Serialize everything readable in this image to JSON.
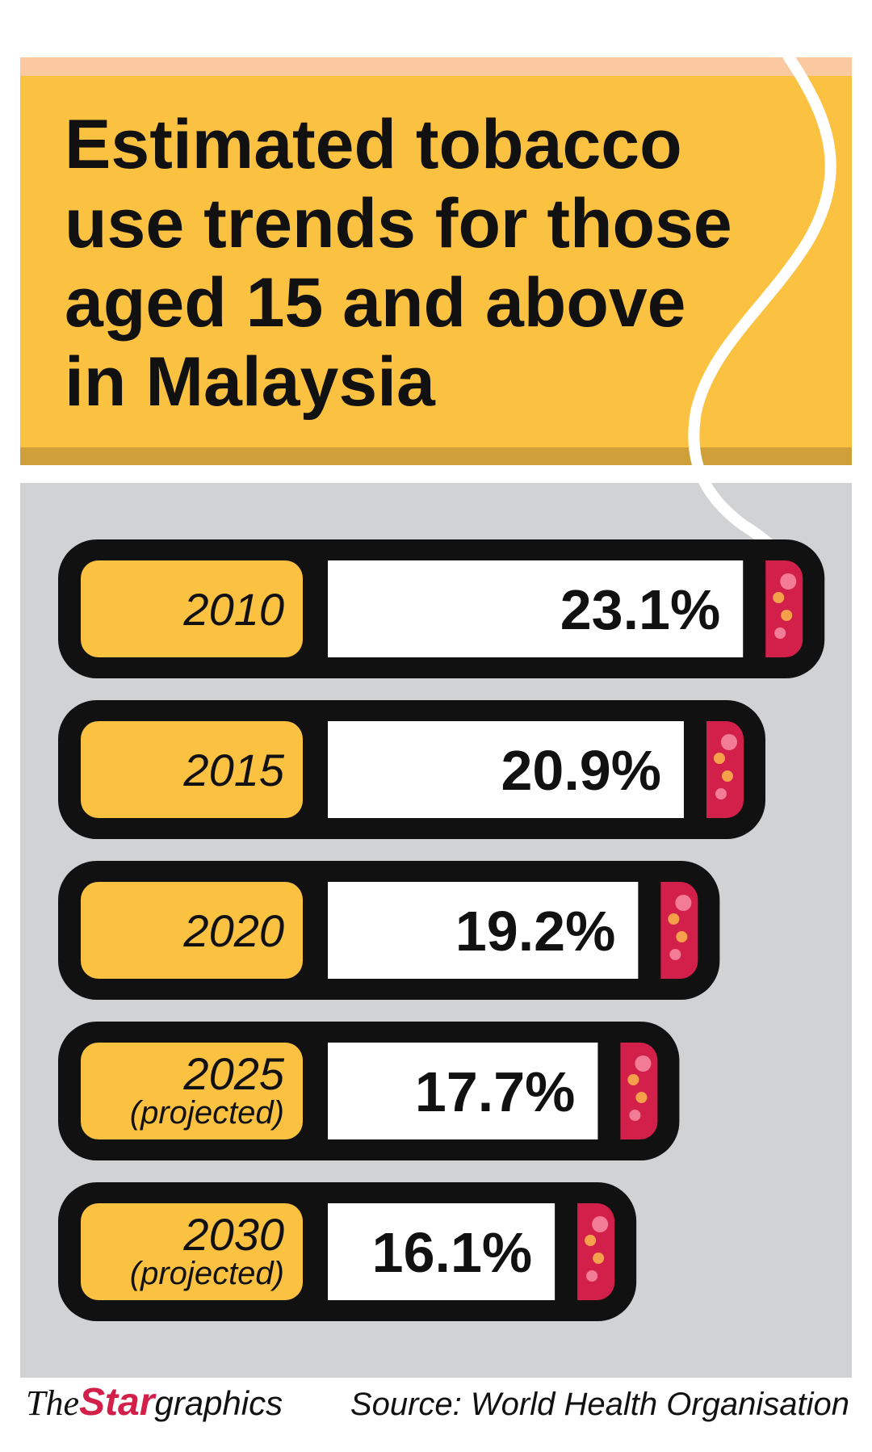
{
  "chart_data": {
    "type": "bar",
    "orientation": "horizontal",
    "title": "Estimated tobacco use trends for those aged 15 and above in Malaysia",
    "categories": [
      "2010",
      "2015",
      "2020",
      "2025",
      "2030"
    ],
    "category_notes": [
      null,
      null,
      null,
      "(projected)",
      "(projected)"
    ],
    "values": [
      23.1,
      20.9,
      19.2,
      17.7,
      16.1
    ],
    "value_labels": [
      "23.1%",
      "20.9%",
      "19.2%",
      "17.7%",
      "16.1%"
    ],
    "color": "#ffffff",
    "source": "Source: World Health Organisation",
    "brand": {
      "the": "The",
      "star": "Star",
      "graphics": "graphics"
    }
  }
}
